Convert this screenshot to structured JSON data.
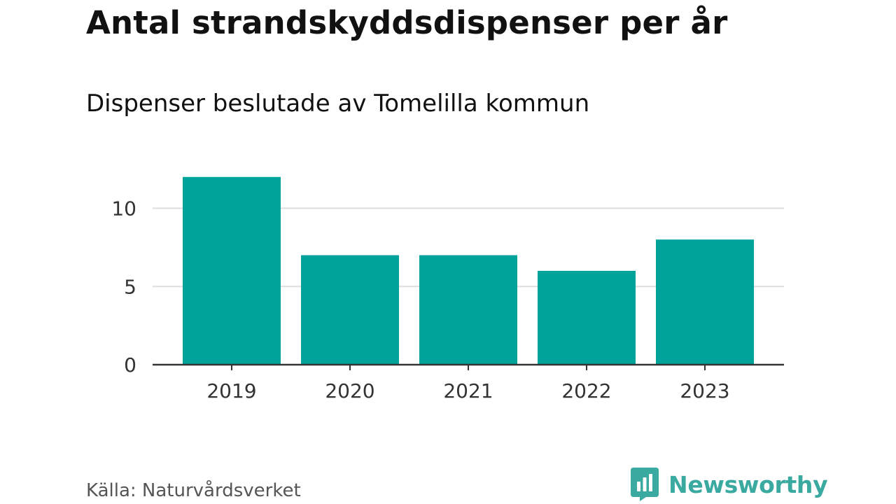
{
  "colors": {
    "bar": "#00a39a",
    "grid": "#dddddd",
    "axis": "#333333",
    "brand": "#3aaaa0"
  },
  "chart_data": {
    "type": "bar",
    "title": "Antal strandskyddsdispenser per år",
    "subtitle": "Dispenser beslutade av Tomelilla kommun",
    "categories": [
      "2019",
      "2020",
      "2021",
      "2022",
      "2023"
    ],
    "values": [
      12,
      7,
      7,
      6,
      8
    ],
    "y_ticks": [
      "0",
      "5",
      "10"
    ],
    "ylim": [
      0,
      12
    ],
    "grid": true,
    "xlabel": "",
    "ylabel": ""
  },
  "footer": {
    "source": "Källa: Naturvårdsverket",
    "brand": "Newsworthy",
    "brand_icon": "newsworthy-logo-icon"
  }
}
